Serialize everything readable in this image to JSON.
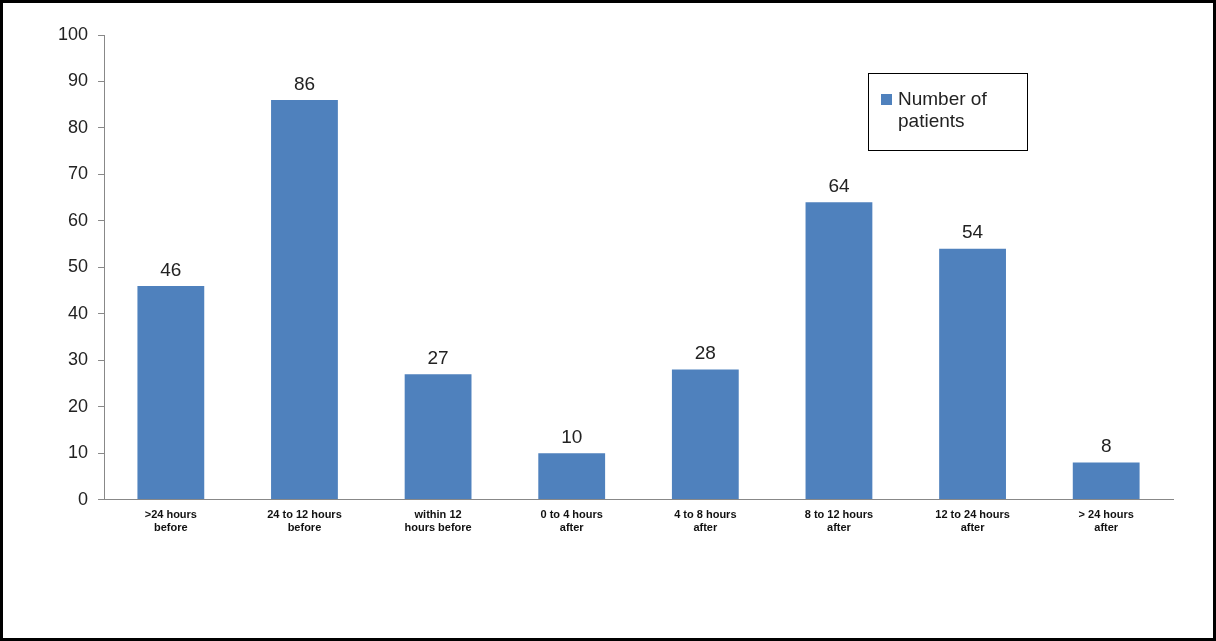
{
  "chart_data": {
    "type": "bar",
    "categories": [
      ">24 hours before",
      "24 to 12 hours before",
      "within 12 hours before",
      "0 to 4 hours after",
      "4 to 8 hours after",
      "8 to 12 hours after",
      "12 to 24 hours after",
      "> 24 hours after"
    ],
    "series": [
      {
        "name": "Number of patients",
        "color": "#4f81bd",
        "values": [
          46,
          86,
          27,
          10,
          28,
          64,
          54,
          8
        ]
      }
    ],
    "ylim": [
      0,
      100
    ],
    "yticks": [
      0,
      10,
      20,
      30,
      40,
      50,
      60,
      70,
      80,
      90,
      100
    ],
    "grid": false,
    "legend": "top right",
    "data_labels": true
  }
}
